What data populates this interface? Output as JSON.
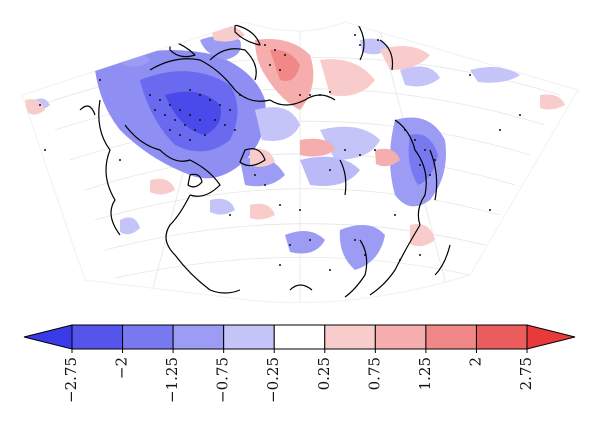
{
  "figure": {
    "type": "polar-conic anomaly map with stippling",
    "stipple_meaning": "",
    "colors": {
      "strong_negative": "#3a3ae8",
      "neg_2": "#5f5fee",
      "neg_3": "#8e8ef3",
      "neg_4": "#babaf8",
      "neutral": "#ffffff",
      "pos_4": "#f8c9c9",
      "pos_3": "#f4a9a9",
      "pos_2": "#ef8787",
      "pos_1": "#e95b5b",
      "coastline": "#000000",
      "graticule": "#dddddd"
    }
  },
  "colorbar": {
    "boundaries": [
      "−2.75",
      "−2",
      "−1.25",
      "−0.75",
      "−0.25",
      "0.25",
      "0.75",
      "1.25",
      "2",
      "2.75"
    ],
    "bins": [
      {
        "from": -2.75,
        "to": -2.0,
        "color": "#5555ec"
      },
      {
        "from": -2.0,
        "to": -1.25,
        "color": "#7878f0"
      },
      {
        "from": -1.25,
        "to": -0.75,
        "color": "#9c9cf5"
      },
      {
        "from": -0.75,
        "to": -0.25,
        "color": "#c4c4f9"
      },
      {
        "from": -0.25,
        "to": 0.25,
        "color": "#ffffff"
      },
      {
        "from": 0.25,
        "to": 0.75,
        "color": "#f9cccc"
      },
      {
        "from": 0.75,
        "to": 1.25,
        "color": "#f5adad"
      },
      {
        "from": 1.25,
        "to": 2.0,
        "color": "#f08888"
      },
      {
        "from": 2.0,
        "to": 2.75,
        "color": "#eb5c5c"
      }
    ],
    "extend_low_color": "#3a3ae8",
    "extend_high_color": "#e83a3a",
    "extend": "both"
  }
}
